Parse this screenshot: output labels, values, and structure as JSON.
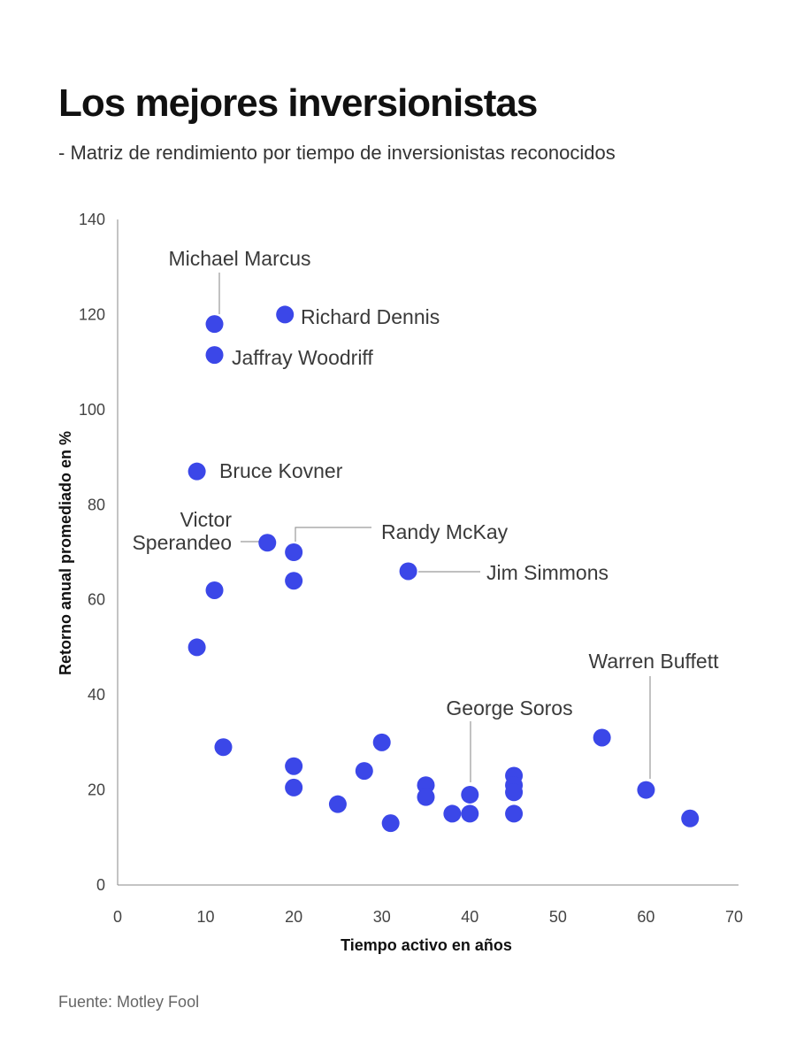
{
  "title": "Los mejores inversionistas",
  "subtitle": "- Matriz de rendimiento por tiempo de inversionistas reconocidos",
  "source": "Fuente: Motley Fool",
  "chart_data": {
    "type": "scatter",
    "title": "Los mejores inversionistas",
    "subtitle": "- Matriz de rendimiento por tiempo de inversionistas reconocidos",
    "xlabel": "Tiempo activo en años",
    "ylabel": "Retorno anual promediado en %",
    "xlim": [
      0,
      70
    ],
    "ylim": [
      0,
      140
    ],
    "xticks": [
      0,
      10,
      20,
      30,
      40,
      50,
      60,
      70
    ],
    "yticks": [
      0,
      20,
      40,
      60,
      80,
      100,
      120,
      140
    ],
    "grid": false,
    "color": "#3b47e8",
    "points": [
      {
        "x": 11,
        "y": 118,
        "label": "Michael Marcus"
      },
      {
        "x": 19,
        "y": 120,
        "label": "Richard Dennis"
      },
      {
        "x": 11,
        "y": 111.5,
        "label": "Jaffray Woodriff"
      },
      {
        "x": 9,
        "y": 87,
        "label": "Bruce Kovner"
      },
      {
        "x": 17,
        "y": 72,
        "label": "Victor Sperandeo"
      },
      {
        "x": 20,
        "y": 70,
        "label": "Randy McKay"
      },
      {
        "x": 33,
        "y": 66,
        "label": "Jim Simmons"
      },
      {
        "x": 20,
        "y": 64
      },
      {
        "x": 11,
        "y": 62
      },
      {
        "x": 9,
        "y": 50
      },
      {
        "x": 12,
        "y": 29
      },
      {
        "x": 20,
        "y": 25
      },
      {
        "x": 20,
        "y": 20.5
      },
      {
        "x": 25,
        "y": 17
      },
      {
        "x": 28,
        "y": 24
      },
      {
        "x": 30,
        "y": 30
      },
      {
        "x": 31,
        "y": 13
      },
      {
        "x": 35,
        "y": 21
      },
      {
        "x": 35,
        "y": 18.5
      },
      {
        "x": 38,
        "y": 15
      },
      {
        "x": 40,
        "y": 19,
        "label": "George Soros"
      },
      {
        "x": 40,
        "y": 15
      },
      {
        "x": 45,
        "y": 23
      },
      {
        "x": 45,
        "y": 21
      },
      {
        "x": 45,
        "y": 19.5
      },
      {
        "x": 45,
        "y": 15
      },
      {
        "x": 55,
        "y": 31
      },
      {
        "x": 60,
        "y": 20,
        "label": "Warren Buffett"
      },
      {
        "x": 65,
        "y": 14
      }
    ]
  }
}
